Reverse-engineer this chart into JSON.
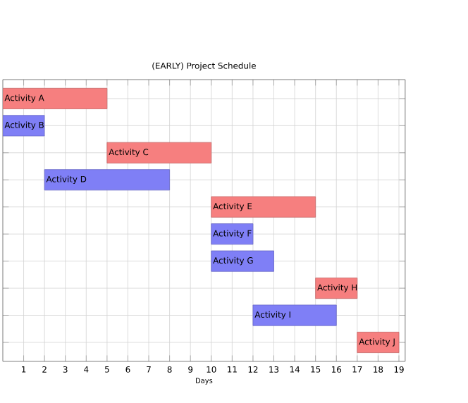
{
  "chart_data": {
    "type": "bar",
    "orientation": "horizontal",
    "title": "(EARLY) Project Schedule",
    "xlabel": "Days",
    "categories": [
      null,
      null,
      null,
      null,
      null,
      null,
      null,
      null,
      null,
      null
    ],
    "base": [
      0,
      0,
      5,
      2,
      10,
      10,
      10,
      15,
      12,
      17
    ],
    "values": [
      5,
      2,
      5,
      6,
      5,
      2,
      3,
      2,
      4,
      2
    ],
    "value_labels": [
      "Activity A",
      "Activity B",
      "Activity C",
      "Activity D",
      "Activity E",
      "Activity F",
      "Activity G",
      "Activity H",
      "Activity I",
      "Activity J"
    ],
    "colors": [
      "#f67f7f",
      "#7f7ff6",
      "#f67f7f",
      "#7f7ff6",
      "#f67f7f",
      "#7f7ff6",
      "#7f7ff6",
      "#f67f7f",
      "#7f7ff6",
      "#f67f7f"
    ],
    "xlim": [
      0,
      19.3
    ],
    "xticks": [
      1,
      2,
      3,
      4,
      5,
      6,
      7,
      8,
      9,
      10,
      11,
      12,
      13,
      14,
      15,
      16,
      17,
      18,
      19
    ],
    "grid": true,
    "tick_labels": "x"
  }
}
